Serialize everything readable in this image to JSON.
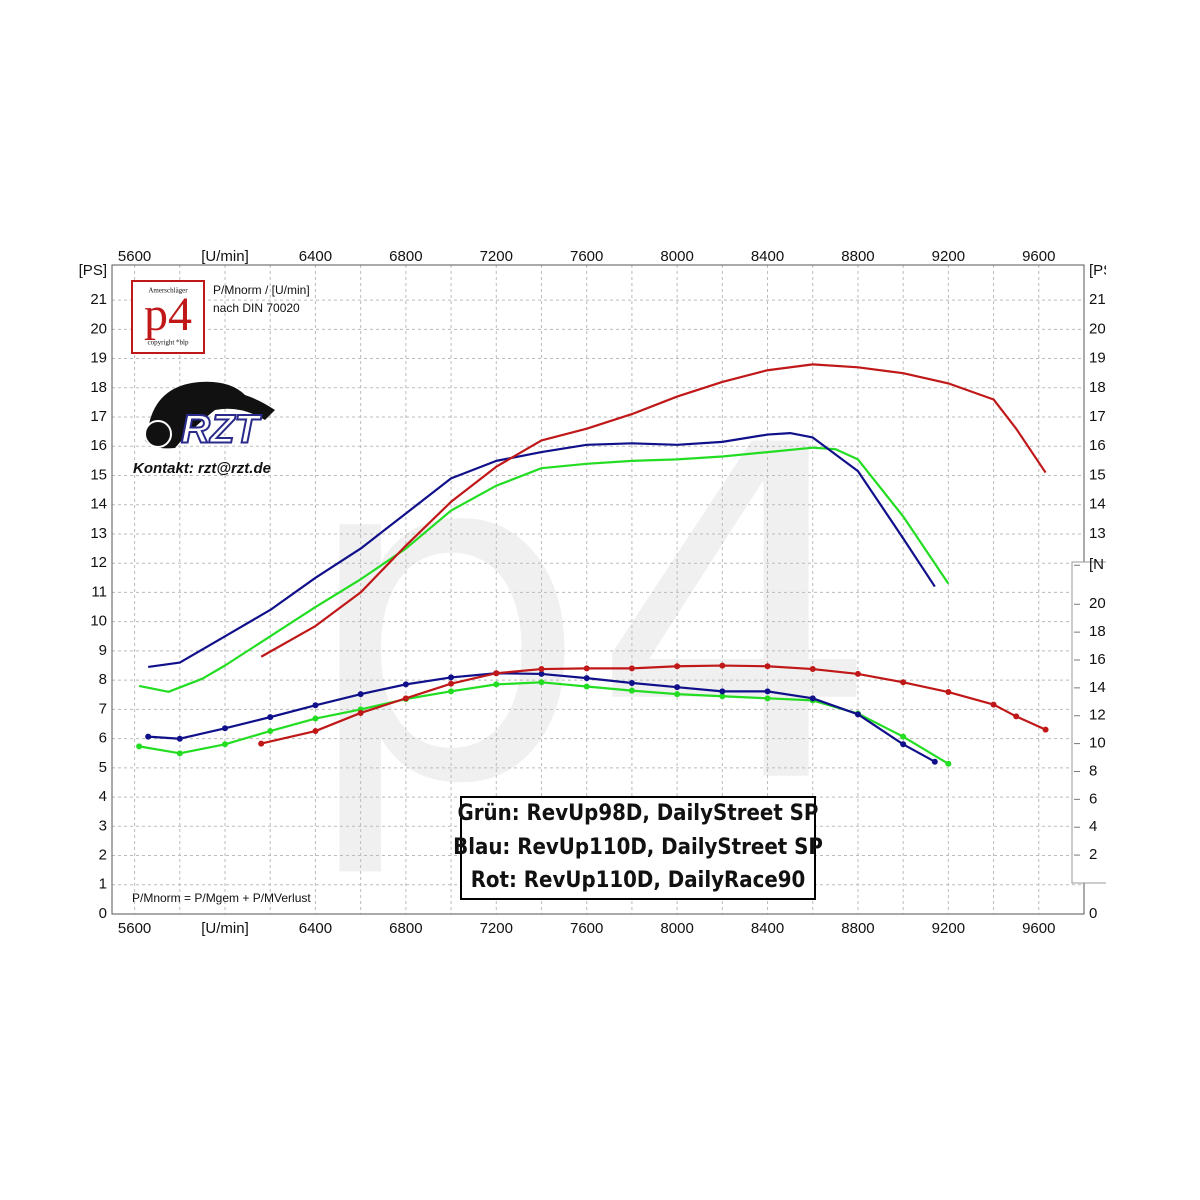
{
  "chart_data": {
    "type": "line",
    "xlim": [
      5500,
      9800
    ],
    "xticks": [
      5600,
      {
        "value": 6000,
        "label": "[U/min]"
      },
      6400,
      6800,
      7200,
      7600,
      8000,
      8400,
      8800,
      9200,
      9600
    ],
    "xgrid": [
      5600,
      5800,
      6000,
      6200,
      6400,
      6600,
      6800,
      7000,
      7200,
      7400,
      7600,
      7800,
      8000,
      8200,
      8400,
      8600,
      8800,
      9000,
      9200,
      9400,
      9600
    ],
    "ylim": [
      0,
      22.2
    ],
    "yticks": [
      0,
      1,
      2,
      3,
      4,
      5,
      6,
      7,
      8,
      9,
      10,
      11,
      12,
      13,
      14,
      15,
      16,
      17,
      18,
      19,
      20,
      21,
      {
        "value": 22,
        "label": "[PS]"
      }
    ],
    "y2lim": [
      -2.23,
      44.35
    ],
    "y2ticks": [
      2,
      4,
      6,
      8,
      10,
      12,
      14,
      16,
      18,
      20,
      {
        "value": 22.8,
        "label": "[N"
      }
    ],
    "grid": true,
    "series": [
      {
        "name": "Grün: RevUp98D, DailyStreet SP",
        "color": "#22dd22",
        "x": [
          5620,
          5750,
          5900,
          6000,
          6200,
          6400,
          6600,
          6800,
          7000,
          7200,
          7400,
          7600,
          7800,
          8000,
          8200,
          8400,
          8600,
          8700,
          8800,
          9000,
          9200
        ],
        "values": [
          7.8,
          7.6,
          8.05,
          8.5,
          9.5,
          10.5,
          11.45,
          12.5,
          13.8,
          14.65,
          15.25,
          15.4,
          15.5,
          15.55,
          15.65,
          15.8,
          15.95,
          15.9,
          15.55,
          13.6,
          11.3
        ]
      },
      {
        "name": "Blau: RevUp110D, DailyStreet SP",
        "color": "#10108a",
        "x": [
          5660,
          5800,
          6000,
          6200,
          6400,
          6600,
          6800,
          7000,
          7200,
          7400,
          7600,
          7800,
          8000,
          8200,
          8400,
          8500,
          8600,
          8800,
          9000,
          9140
        ],
        "values": [
          8.45,
          8.6,
          9.5,
          10.4,
          11.5,
          12.5,
          13.7,
          14.9,
          15.5,
          15.8,
          16.05,
          16.1,
          16.05,
          16.15,
          16.4,
          16.45,
          16.3,
          15.15,
          12.85,
          11.2
        ]
      },
      {
        "name": "Rot: RevUp110D, DailyRace90",
        "color": "#c01818",
        "x": [
          6160,
          6400,
          6600,
          6800,
          7000,
          7200,
          7400,
          7600,
          7800,
          8000,
          8200,
          8400,
          8600,
          8800,
          9000,
          9200,
          9400,
          9500,
          9630
        ],
        "values": [
          8.8,
          9.85,
          11.0,
          12.6,
          14.1,
          15.3,
          16.2,
          16.6,
          17.1,
          17.7,
          18.2,
          18.6,
          18.8,
          18.7,
          18.5,
          18.15,
          17.6,
          16.6,
          15.1
        ]
      },
      {
        "color": "#22dd22",
        "axis": "y2",
        "markers": true,
        "x": [
          5620,
          5800,
          6000,
          6200,
          6400,
          6600,
          6800,
          7000,
          7200,
          7400,
          7600,
          7800,
          8000,
          8200,
          8400,
          8600,
          8800,
          9000,
          9200
        ],
        "values": [
          9.8,
          9.3,
          9.95,
          10.9,
          11.8,
          12.45,
          13.2,
          13.75,
          14.25,
          14.4,
          14.1,
          13.8,
          13.55,
          13.4,
          13.25,
          13.1,
          12.15,
          10.5,
          8.55
        ]
      },
      {
        "color": "#10108a",
        "axis": "y2",
        "markers": true,
        "x": [
          5660,
          5800,
          6000,
          6200,
          6400,
          6600,
          6800,
          7000,
          7200,
          7400,
          7600,
          7800,
          8000,
          8200,
          8400,
          8600,
          8800,
          9000,
          9140
        ],
        "values": [
          10.5,
          10.35,
          11.1,
          11.9,
          12.75,
          13.55,
          14.25,
          14.75,
          15.05,
          15.0,
          14.7,
          14.35,
          14.05,
          13.75,
          13.75,
          13.25,
          12.1,
          9.95,
          8.7
        ]
      },
      {
        "color": "#c01818",
        "axis": "y2",
        "markers": true,
        "x": [
          6160,
          6400,
          6600,
          6800,
          7000,
          7200,
          7400,
          7600,
          7800,
          8000,
          8200,
          8400,
          8600,
          8800,
          9000,
          9200,
          9400,
          9500,
          9630
        ],
        "values": [
          10.0,
          10.9,
          12.2,
          13.25,
          14.3,
          15.05,
          15.35,
          15.4,
          15.4,
          15.55,
          15.6,
          15.55,
          15.35,
          15.0,
          14.4,
          13.7,
          12.8,
          11.95,
          11.0
        ]
      }
    ],
    "annotations": [
      "P/Mnorm / [U/min]",
      "nach DIN 70020",
      "Kontakt: rzt@rzt.de",
      "P/Mnorm = P/Mgem + P/MVerlust"
    ],
    "logo": {
      "text": "p4",
      "top": "Amerschläger",
      "bottom": "copyright *blp"
    },
    "brand": "RZT"
  }
}
